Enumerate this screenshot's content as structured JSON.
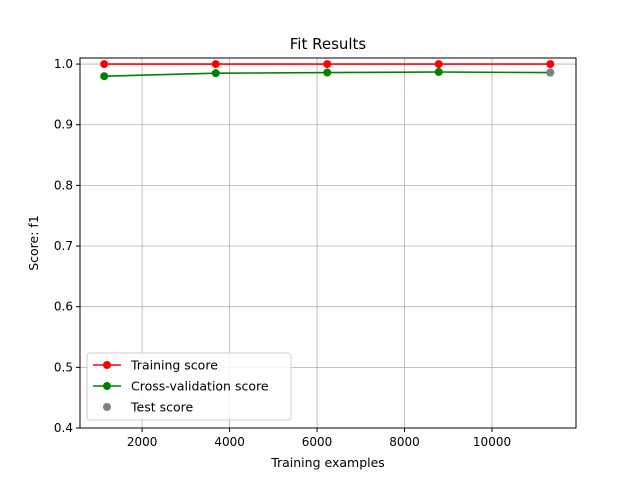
{
  "chart_data": {
    "type": "line",
    "title": "Fit Results",
    "xlabel": "Training examples",
    "ylabel": "Score: f1",
    "xlim": [
      580,
      11920
    ],
    "ylim": [
      0.4,
      1.01
    ],
    "xticks": [
      2000,
      4000,
      6000,
      8000,
      10000
    ],
    "yticks": [
      0.4,
      0.5,
      0.6,
      0.7,
      0.8,
      0.9,
      1.0
    ],
    "xtick_labels": [
      "2000",
      "4000",
      "6000",
      "8000",
      "10000"
    ],
    "ytick_labels": [
      "0.4",
      "0.5",
      "0.6",
      "0.7",
      "0.8",
      "0.9",
      "1.0"
    ],
    "grid": true,
    "legend_position": "lower-left",
    "series": [
      {
        "name": "Training score",
        "color": "#ff0000",
        "style": "line-marker",
        "x": [
          1133,
          3683,
          6233,
          8782,
          11332
        ],
        "y": [
          1.0,
          1.0,
          1.0,
          1.0,
          1.0
        ]
      },
      {
        "name": "Cross-validation score",
        "color": "#008000",
        "style": "line-marker",
        "x": [
          1133,
          3683,
          6233,
          8782,
          11332
        ],
        "y": [
          0.98,
          0.985,
          0.986,
          0.987,
          0.986
        ]
      },
      {
        "name": "Test score",
        "color": "#808080",
        "style": "marker",
        "x": [
          11332
        ],
        "y": [
          0.986
        ]
      }
    ]
  }
}
